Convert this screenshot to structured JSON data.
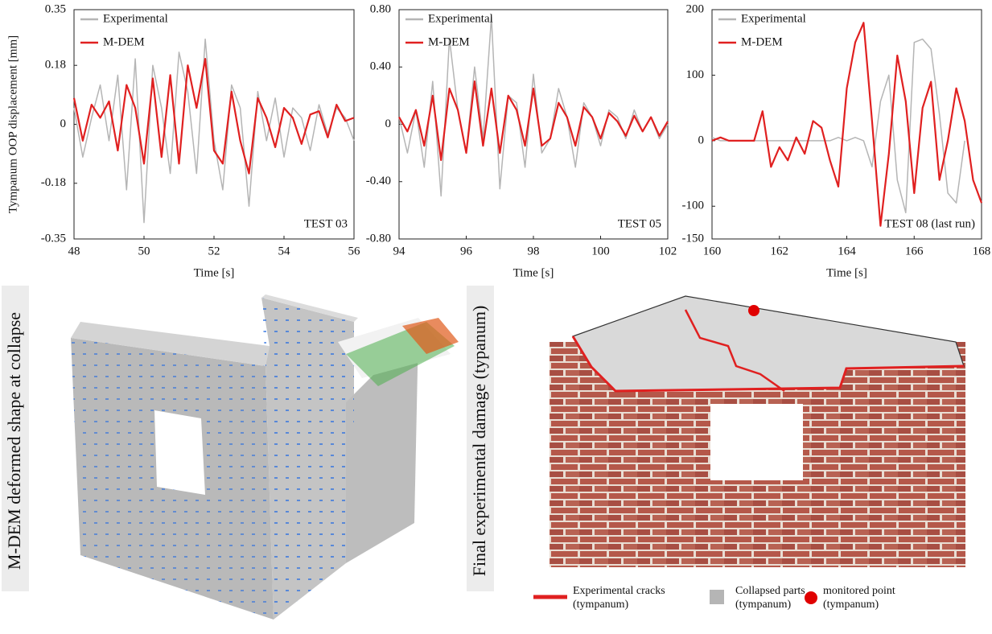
{
  "chart_data": [
    {
      "type": "line",
      "y_label": "Tympanum OOP displacement [mm]",
      "x_label": "Time [s]",
      "annotation": "TEST 03",
      "legend": "upper left",
      "x": [
        48,
        48.25,
        48.5,
        48.75,
        49,
        49.25,
        49.5,
        49.75,
        50,
        50.25,
        50.5,
        50.75,
        51,
        51.25,
        51.5,
        51.75,
        52,
        52.25,
        52.5,
        52.75,
        53,
        53.25,
        53.5,
        53.75,
        54,
        54.25,
        54.5,
        54.75,
        55,
        55.25,
        55.5,
        55.75,
        56
      ],
      "series": [
        {
          "name": "Experimental",
          "color": "#b5b5b5",
          "values": [
            0.05,
            -0.1,
            0.02,
            0.12,
            -0.05,
            0.15,
            -0.2,
            0.2,
            -0.3,
            0.18,
            0.05,
            -0.15,
            0.22,
            0.1,
            -0.15,
            0.26,
            -0.05,
            -0.2,
            0.12,
            0.05,
            -0.25,
            0.1,
            -0.05,
            0.08,
            -0.1,
            0.05,
            0.02,
            -0.08,
            0.06,
            -0.03,
            0.05,
            0.02,
            -0.05
          ]
        },
        {
          "name": "M-DEM",
          "color": "#e02020",
          "values": [
            0.08,
            -0.05,
            0.06,
            0.02,
            0.07,
            -0.08,
            0.12,
            0.05,
            -0.12,
            0.14,
            -0.1,
            0.15,
            -0.12,
            0.18,
            0.05,
            0.2,
            -0.08,
            -0.12,
            0.1,
            -0.05,
            -0.15,
            0.08,
            0.02,
            -0.07,
            0.05,
            0.02,
            -0.06,
            0.03,
            0.04,
            -0.04,
            0.06,
            0.01,
            0.02
          ]
        }
      ],
      "xlim": [
        48,
        56
      ],
      "ylim": [
        -0.35,
        0.35
      ],
      "xticks": [
        48,
        50,
        52,
        54,
        56
      ],
      "yticks": [
        -0.35,
        -0.18,
        0,
        0.18,
        0.35
      ]
    },
    {
      "type": "line",
      "x_label": "Time [s]",
      "annotation": "TEST 05",
      "legend": "upper left",
      "x": [
        94,
        94.25,
        94.5,
        94.75,
        95,
        95.25,
        95.5,
        95.75,
        96,
        96.25,
        96.5,
        96.75,
        97,
        97.25,
        97.5,
        97.75,
        98,
        98.25,
        98.5,
        98.75,
        99,
        99.25,
        99.5,
        99.75,
        100,
        100.25,
        100.5,
        100.75,
        101,
        101.25,
        101.5,
        101.75,
        102
      ],
      "series": [
        {
          "name": "Experimental",
          "color": "#b5b5b5",
          "values": [
            0.05,
            -0.2,
            0.1,
            -0.3,
            0.3,
            -0.5,
            0.6,
            0.1,
            -0.2,
            0.4,
            -0.1,
            0.75,
            -0.45,
            0.2,
            0.15,
            -0.3,
            0.35,
            -0.2,
            -0.1,
            0.25,
            0.05,
            -0.3,
            0.15,
            0.05,
            -0.15,
            0.1,
            0.05,
            -0.1,
            0.1,
            -0.05,
            0.05,
            -0.1,
            0.0
          ]
        },
        {
          "name": "M-DEM",
          "color": "#e02020",
          "values": [
            0.05,
            -0.05,
            0.1,
            -0.15,
            0.2,
            -0.25,
            0.25,
            0.1,
            -0.2,
            0.3,
            -0.15,
            0.25,
            -0.2,
            0.2,
            0.1,
            -0.15,
            0.25,
            -0.15,
            -0.1,
            0.15,
            0.05,
            -0.15,
            0.12,
            0.05,
            -0.1,
            0.08,
            0.02,
            -0.08,
            0.06,
            -0.05,
            0.05,
            -0.08,
            0.02
          ]
        }
      ],
      "xlim": [
        94,
        102
      ],
      "ylim": [
        -0.8,
        0.8
      ],
      "xticks": [
        94,
        96,
        98,
        100,
        102
      ],
      "yticks": [
        {
          "value": -0.8,
          "label": "-0.80"
        },
        {
          "value": -0.4,
          "label": "-0.40"
        },
        0,
        {
          "value": 0.4,
          "label": "0.40"
        },
        {
          "value": 0.8,
          "label": "0.80"
        }
      ]
    },
    {
      "type": "line",
      "x_label": "Time [s]",
      "annotation": "TEST 08  (last run)",
      "legend": "upper left",
      "x": [
        160,
        160.25,
        160.5,
        160.75,
        161,
        161.25,
        161.5,
        161.75,
        162,
        162.25,
        162.5,
        162.75,
        163,
        163.25,
        163.5,
        163.75,
        164,
        164.25,
        164.5,
        164.75,
        165,
        165.25,
        165.5,
        165.75,
        166,
        166.25,
        166.5,
        166.75,
        167,
        167.25,
        167.5,
        167.75,
        168
      ],
      "series": [
        {
          "name": "Experimental",
          "color": "#b5b5b5",
          "values": [
            5,
            0,
            0,
            0,
            0,
            0,
            0,
            0,
            0,
            0,
            0,
            0,
            0,
            0,
            0,
            5,
            0,
            5,
            0,
            -40,
            60,
            100,
            -60,
            -110,
            150,
            155,
            140,
            40,
            -80,
            -95,
            0,
            null,
            null
          ]
        },
        {
          "name": "M-DEM",
          "color": "#e02020",
          "values": [
            0,
            5,
            0,
            0,
            0,
            0,
            45,
            -40,
            -10,
            -30,
            5,
            -20,
            30,
            20,
            -30,
            -70,
            80,
            150,
            180,
            30,
            -130,
            -20,
            130,
            60,
            -80,
            50,
            90,
            -60,
            0,
            80,
            30,
            -60,
            -95
          ]
        }
      ],
      "xlim": [
        160,
        168
      ],
      "ylim": [
        -150,
        200
      ],
      "xticks": [
        160,
        162,
        164,
        166,
        168
      ],
      "yticks": [
        -150,
        -100,
        0,
        100,
        200
      ]
    }
  ],
  "illustrations": {
    "left": {
      "label": "M-DEM  deformed shape at collapse"
    },
    "right": {
      "label": "Final experimental damage (typanum)",
      "legend": [
        {
          "lines": [
            "Experimental cracks",
            "(tympanum)"
          ]
        },
        {
          "lines": [
            "Collapsed parts",
            "(tympanum)"
          ]
        },
        {
          "lines": [
            "monitored point",
            "(tympanum)"
          ]
        }
      ]
    }
  }
}
